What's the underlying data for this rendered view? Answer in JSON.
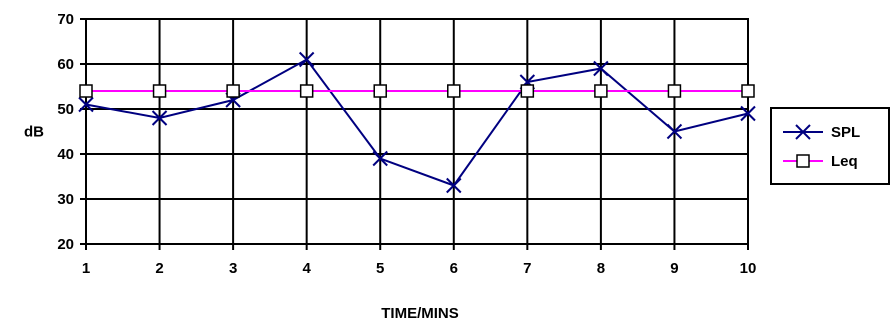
{
  "chart_data": {
    "type": "line",
    "title": "",
    "xlabel": "TIME/MINS",
    "ylabel": "dB",
    "x": [
      1,
      2,
      3,
      4,
      5,
      6,
      7,
      8,
      9,
      10
    ],
    "ylim": [
      20,
      70
    ],
    "yticks": [
      20,
      30,
      40,
      50,
      60,
      70
    ],
    "grid": true,
    "legend": "right",
    "series": [
      {
        "name": "SPL",
        "values": [
          51,
          48,
          52,
          61,
          39,
          33,
          56,
          59,
          45,
          49
        ],
        "color": "#000080",
        "marker": "x"
      },
      {
        "name": "Leq",
        "values": [
          54,
          54,
          54,
          54,
          54,
          54,
          54,
          54,
          54,
          54
        ],
        "color": "#ff00ff",
        "marker": "square"
      }
    ]
  }
}
